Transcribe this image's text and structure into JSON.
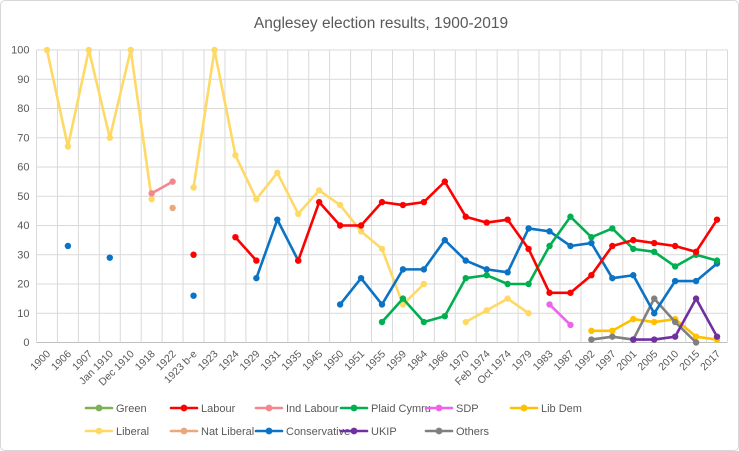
{
  "title": "Anglesey election results, 1900-2019",
  "chart_data": {
    "type": "line",
    "title": "Anglesey election results, 1900-2019",
    "legend_position": "bottom",
    "grid": true,
    "grid_color": "#d9d9d9",
    "axis_line_color": "#bfbfbf",
    "axis_text_color": "#595959",
    "title_color": "#595959",
    "ylim": [
      0,
      100
    ],
    "y_tick_step": 10,
    "y_tick_labels": [
      "0",
      "10",
      "20",
      "30",
      "40",
      "50",
      "60",
      "70",
      "80",
      "90",
      "100"
    ],
    "categories": [
      "1900",
      "1906",
      "1907",
      "Jan 1910",
      "Dec 1910",
      "1918",
      "1922",
      "1923 b-e",
      "1923",
      "1924",
      "1929",
      "1931",
      "1935",
      "1945",
      "1950",
      "1951",
      "1955",
      "1959",
      "1964",
      "1966",
      "1970",
      "Feb 1974",
      "Oct 1974",
      "1979",
      "1983",
      "1987",
      "1992",
      "1997",
      "2001",
      "2005",
      "2010",
      "2015",
      "2017"
    ],
    "series": [
      {
        "name": "Green",
        "color": "#7cb153",
        "values": [
          null,
          null,
          null,
          null,
          null,
          null,
          null,
          null,
          null,
          null,
          null,
          null,
          null,
          null,
          null,
          null,
          null,
          null,
          null,
          null,
          null,
          null,
          null,
          null,
          null,
          null,
          null,
          null,
          null,
          null,
          null,
          null,
          null
        ]
      },
      {
        "name": "Labour",
        "color": "#fe0000",
        "values": [
          null,
          null,
          null,
          null,
          null,
          null,
          null,
          30,
          null,
          36,
          28,
          null,
          28,
          48,
          40,
          40,
          48,
          47,
          48,
          55,
          43,
          41,
          42,
          32,
          17,
          17,
          23,
          33,
          35,
          34,
          33,
          31,
          42
        ]
      },
      {
        "name": "Ind Labour",
        "color": "#f4878e",
        "values": [
          null,
          null,
          null,
          null,
          null,
          51,
          55,
          null,
          null,
          null,
          null,
          null,
          null,
          null,
          null,
          null,
          null,
          null,
          null,
          null,
          null,
          null,
          null,
          null,
          null,
          null,
          null,
          null,
          null,
          null,
          null,
          null,
          null
        ]
      },
      {
        "name": "Plaid Cymru",
        "color": "#00b050",
        "values": [
          null,
          null,
          null,
          null,
          null,
          null,
          null,
          null,
          null,
          null,
          null,
          null,
          null,
          null,
          null,
          null,
          7,
          15,
          7,
          9,
          22,
          23,
          20,
          20,
          33,
          43,
          36,
          39,
          32,
          31,
          26,
          30,
          28
        ]
      },
      {
        "name": "SDP",
        "color": "#ed63ed",
        "values": [
          null,
          null,
          null,
          null,
          null,
          null,
          null,
          null,
          null,
          null,
          null,
          null,
          null,
          null,
          null,
          null,
          null,
          null,
          null,
          null,
          null,
          null,
          null,
          null,
          13,
          6,
          null,
          null,
          null,
          null,
          null,
          null,
          null
        ]
      },
      {
        "name": "Lib Dem",
        "color": "#ffc000",
        "values": [
          null,
          null,
          null,
          null,
          null,
          null,
          null,
          null,
          null,
          null,
          null,
          null,
          null,
          null,
          null,
          null,
          null,
          null,
          null,
          null,
          null,
          null,
          null,
          null,
          null,
          null,
          4,
          4,
          8,
          7,
          8,
          2,
          1
        ]
      },
      {
        "name": "Liberal",
        "color": "#ffd965",
        "values": [
          100,
          67,
          100,
          70,
          100,
          49,
          null,
          53,
          100,
          64,
          49,
          58,
          44,
          52,
          47,
          38,
          32,
          13,
          20,
          null,
          7,
          11,
          15,
          10,
          null,
          null,
          null,
          null,
          null,
          null,
          null,
          null,
          null
        ]
      },
      {
        "name": "Nat Liberal",
        "color": "#eba87f",
        "values": [
          null,
          null,
          null,
          null,
          null,
          null,
          46,
          null,
          null,
          null,
          null,
          null,
          null,
          null,
          null,
          null,
          null,
          null,
          null,
          null,
          null,
          null,
          null,
          null,
          null,
          null,
          null,
          null,
          null,
          null,
          null,
          null,
          null
        ]
      },
      {
        "name": "Conservative",
        "color": "#0b72c4",
        "values": [
          null,
          33,
          null,
          29,
          null,
          null,
          null,
          16,
          null,
          null,
          22,
          42,
          28,
          null,
          13,
          22,
          13,
          25,
          25,
          35,
          28,
          25,
          24,
          39,
          38,
          33,
          34,
          22,
          23,
          10,
          21,
          21,
          27
        ]
      },
      {
        "name": "UKIP",
        "color": "#7030a0",
        "values": [
          null,
          null,
          null,
          null,
          null,
          null,
          null,
          null,
          null,
          null,
          null,
          null,
          null,
          null,
          null,
          null,
          null,
          null,
          null,
          null,
          null,
          null,
          null,
          null,
          null,
          null,
          null,
          null,
          1,
          1,
          2,
          15,
          2
        ]
      },
      {
        "name": "Others",
        "color": "#808080",
        "values": [
          null,
          null,
          null,
          null,
          null,
          null,
          null,
          null,
          null,
          null,
          null,
          null,
          null,
          null,
          null,
          null,
          null,
          null,
          null,
          null,
          null,
          null,
          null,
          null,
          null,
          null,
          1,
          2,
          1,
          15,
          7,
          0,
          null
        ]
      }
    ]
  }
}
